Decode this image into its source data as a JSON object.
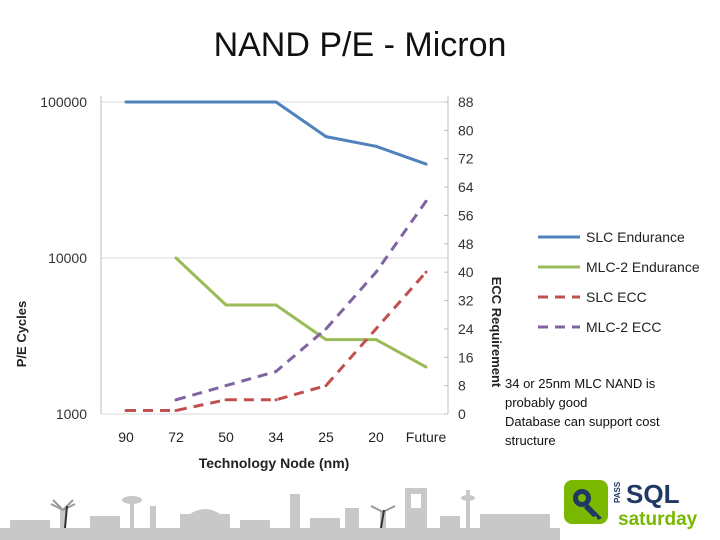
{
  "slide": {
    "title": "NAND P/E - Micron",
    "note_lines": [
      "34 or 25nm MLC NAND is",
      "probably good",
      "Database can support cost",
      "structure"
    ]
  },
  "logo": {
    "pass": "PASS",
    "sql": "SQL",
    "saturday": "saturday"
  },
  "colors": {
    "slc_endurance": "#4F81BD",
    "mlc_endurance": "#9BBB59",
    "slc_ecc": "#C0504D",
    "mlc_ecc": "#8064A2",
    "logo_green": "#7AB800",
    "logo_navy": "#1F3864"
  },
  "chart_data": {
    "type": "line",
    "title": "",
    "categories": [
      "90",
      "72",
      "50",
      "34",
      "25",
      "20",
      "Future"
    ],
    "xlabel": "Technology Node (nm)",
    "ylabel": "P/E Cycles",
    "y2label": "ECC Requirement",
    "yscale": "log",
    "ylim": [
      1000,
      100000
    ],
    "yticks": [
      "100000",
      "10000",
      "1000"
    ],
    "y2lim": [
      0,
      88
    ],
    "y2ticks": [
      "0",
      "8",
      "16",
      "24",
      "32",
      "40",
      "48",
      "56",
      "64",
      "72",
      "80",
      "88"
    ],
    "series": [
      {
        "name": "SLC Endurance",
        "axis": "left",
        "style": "solid",
        "color": "#4F81BD",
        "values": [
          100000,
          100000,
          100000,
          100000,
          60000,
          52000,
          40000
        ]
      },
      {
        "name": "MLC-2 Endurance",
        "axis": "left",
        "style": "solid",
        "color": "#9BBB59",
        "values": [
          null,
          10000,
          5000,
          5000,
          3000,
          3000,
          2000
        ]
      },
      {
        "name": "SLC ECC",
        "axis": "right",
        "style": "dashed",
        "color": "#C0504D",
        "values": [
          1,
          1,
          4,
          4,
          8,
          24,
          40
        ]
      },
      {
        "name": "MLC-2 ECC",
        "axis": "right",
        "style": "dashed",
        "color": "#8064A2",
        "values": [
          null,
          4,
          8,
          12,
          24,
          40,
          60
        ]
      }
    ]
  }
}
